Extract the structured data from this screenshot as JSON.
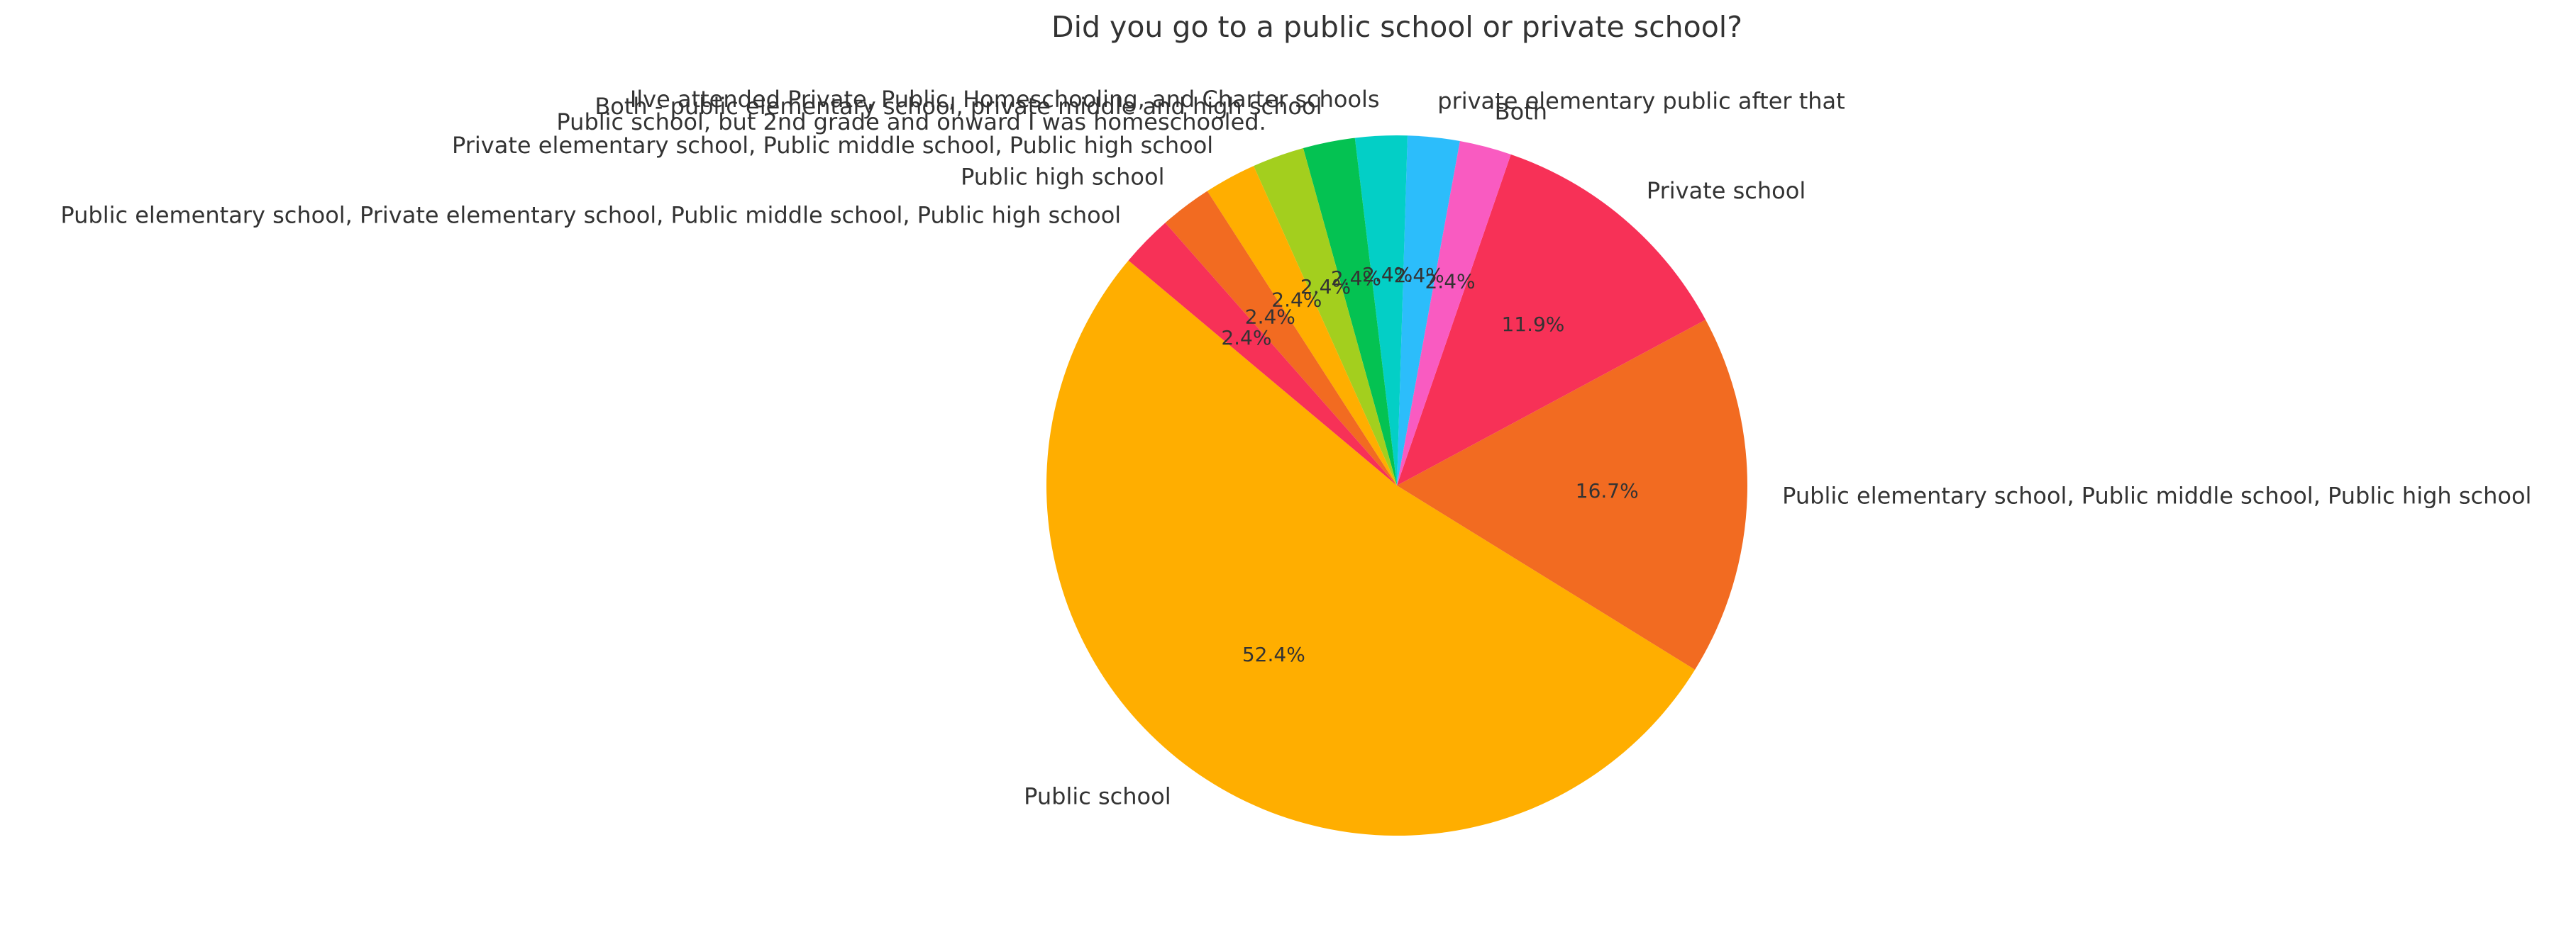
{
  "chart_data": {
    "type": "pie",
    "title": "Did you go to a public school or private school?",
    "start_angle_deg": 140,
    "direction": "counterclockwise",
    "slices": [
      {
        "label": "Public school",
        "value": 52.4,
        "pct_label": "52.4%",
        "color": "#FFAE00"
      },
      {
        "label": "Public elementary school, Public middle school, Public high school",
        "value": 16.7,
        "pct_label": "16.7%",
        "color": "#F26B21"
      },
      {
        "label": "Private school",
        "value": 11.9,
        "pct_label": "11.9%",
        "color": "#F73157"
      },
      {
        "label": "Both",
        "value": 2.4,
        "pct_label": "2.4%",
        "color": "#F95BC1"
      },
      {
        "label": " private elementary public after that",
        "value": 2.4,
        "pct_label": "2.4%",
        "color": "#2CBDFB"
      },
      {
        "label": "Ilve attended Private, Public, Homeschooling, and Charter schools",
        "value": 2.4,
        "pct_label": "2.4%",
        "color": "#03CFC6"
      },
      {
        "label": "Both - public elementary school, private middle and high school",
        "value": 2.4,
        "pct_label": "2.4%",
        "color": "#04C252"
      },
      {
        "label": "Public school, but 2nd grade and onward I was homeschooled.",
        "value": 2.4,
        "pct_label": "2.4%",
        "color": "#A3CF1E"
      },
      {
        "label": "Private elementary school, Public middle school, Public high school",
        "value": 2.4,
        "pct_label": "2.4%",
        "color": "#FFAE00"
      },
      {
        "label": "Public high school",
        "value": 2.4,
        "pct_label": "2.4%",
        "color": "#F26B21"
      },
      {
        "label": "Public elementary school, Private elementary school, Public middle school, Public high school",
        "value": 2.4,
        "pct_label": "2.4%",
        "color": "#F73157"
      }
    ]
  }
}
